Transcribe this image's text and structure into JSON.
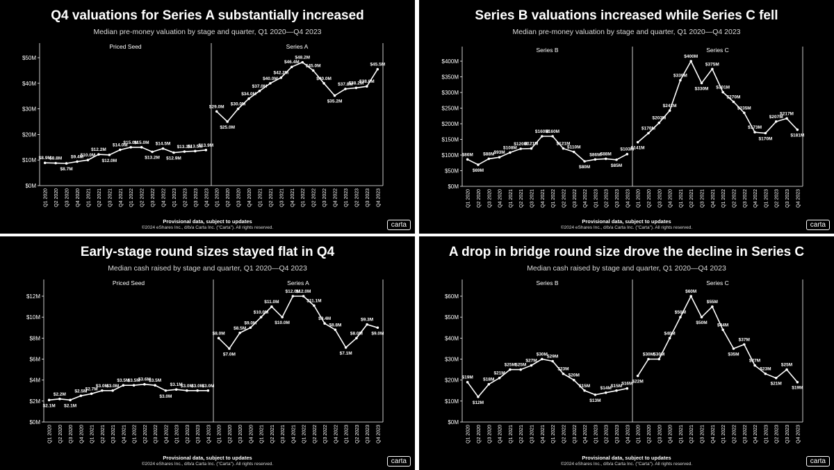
{
  "chart_data": [
    {
      "type": "line",
      "title": "Q4 valuations for Series A substantially increased",
      "subtitle": "Median pre-money valuation by stage and quarter, Q1 2020—Q4 2023",
      "footnote": "Provisional data, subject to updates",
      "copyright": "©2024 eShares Inc., d/b/a Carta Inc. (\"Carta\"). All rights reserved.",
      "logo": "carta",
      "ylim": [
        0,
        50
      ],
      "yticks": [
        "$0M",
        "$10M",
        "$20M",
        "$30M",
        "$40M",
        "$50M"
      ],
      "x": [
        "Q1 2020",
        "Q2 2020",
        "Q3 2020",
        "Q4 2020",
        "Q1 2021",
        "Q2 2021",
        "Q3 2021",
        "Q4 2021",
        "Q1 2022",
        "Q2 2022",
        "Q3 2022",
        "Q4 2022",
        "Q1 2023",
        "Q2 2023",
        "Q3 2023",
        "Q4 2023"
      ],
      "series": [
        {
          "name": "Priced Seed",
          "values": [
            8.9,
            8.8,
            8.7,
            9.4,
            10.0,
            12.2,
            12.0,
            14.0,
            15.0,
            15.0,
            13.2,
            14.5,
            12.9,
            13.3,
            13.5,
            13.9
          ],
          "labels": [
            "$8.9M",
            "$8.8M",
            "$8.7M",
            "$9.4M",
            "$10.0M",
            "$12.2M",
            "$12.0M",
            "$14.0M",
            "$15.0M",
            "$15.0M",
            "$13.2M",
            "$14.5M",
            "$12.9M",
            "$13.3M",
            "$13.5M",
            "$13.9M"
          ]
        },
        {
          "name": "Series A",
          "values": [
            29.0,
            25.0,
            30.0,
            34.0,
            37.0,
            40.0,
            42.2,
            46.4,
            48.2,
            45.0,
            40.0,
            35.2,
            37.8,
            38.2,
            38.8,
            45.5
          ],
          "labels": [
            "$29.0M",
            "$25.0M",
            "$30.0M",
            "$34.0M",
            "$37.0M",
            "$40.0M",
            "$42.2M",
            "$46.4M",
            "$48.2M",
            "$45.0M",
            "$40.0M",
            "$35.2M",
            "$37.8M",
            "$38.2M",
            "$38.8M",
            "$45.5M"
          ]
        }
      ]
    },
    {
      "type": "line",
      "title": "Series B valuations increased while Series C fell",
      "subtitle": "Median pre-money valuation by stage and quarter, Q1 2020—Q4 2023",
      "footnote": "Provisional data, subject to updates",
      "copyright": "©2024 eShares Inc., d/b/a Carta Inc. (\"Carta\"). All rights reserved.",
      "logo": "carta",
      "ylim": [
        0,
        400
      ],
      "yticks": [
        "$0M",
        "$50M",
        "$100M",
        "$150M",
        "$200M",
        "$250M",
        "$300M",
        "$350M",
        "$400M"
      ],
      "x": [
        "Q1 2020",
        "Q2 2020",
        "Q3 2020",
        "Q4 2020",
        "Q1 2021",
        "Q2 2021",
        "Q3 2021",
        "Q4 2021",
        "Q1 2022",
        "Q2 2022",
        "Q3 2022",
        "Q4 2022",
        "Q1 2023",
        "Q2 2023",
        "Q3 2023",
        "Q4 2023"
      ],
      "series": [
        {
          "name": "Series B",
          "values": [
            86,
            69,
            88,
            93,
            108,
            120,
            121,
            160,
            160,
            121,
            110,
            80,
            86,
            88,
            85,
            103
          ],
          "labels": [
            "$86M",
            "$69M",
            "$88M",
            "$93M",
            "$108M",
            "$120M",
            "$121M",
            "$160M",
            "$160M",
            "$121M",
            "$110M",
            "$80M",
            "$86M",
            "$88M",
            "$85M",
            "$103M"
          ]
        },
        {
          "name": "Series C",
          "values": [
            141,
            170,
            203,
            242,
            339,
            400,
            330,
            375,
            301,
            270,
            235,
            173,
            170,
            207,
            217,
            181
          ],
          "labels": [
            "$141M",
            "$170M",
            "$203M",
            "$242M",
            "$339M",
            "$400M",
            "$330M",
            "$375M",
            "$301M",
            "$270M",
            "$235M",
            "$173M",
            "$170M",
            "$207M",
            "$217M",
            "$181M"
          ]
        }
      ]
    },
    {
      "type": "line",
      "title": "Early-stage round sizes stayed flat in Q4",
      "subtitle": "Median cash raised by stage and quarter, Q1 2020—Q4 2023",
      "footnote": "Provisional data, subject to updates",
      "copyright": "©2024 eShares Inc., d/b/a Carta Inc. (\"Carta\"). All rights reserved.",
      "logo": "carta",
      "ylim": [
        0,
        12
      ],
      "yticks": [
        "$0M",
        "$2M",
        "$4M",
        "$6M",
        "$8M",
        "$10M",
        "$12M"
      ],
      "x": [
        "Q1 2020",
        "Q2 2020",
        "Q3 2020",
        "Q4 2020",
        "Q1 2021",
        "Q2 2021",
        "Q3 2021",
        "Q4 2021",
        "Q1 2022",
        "Q2 2022",
        "Q3 2022",
        "Q4 2022",
        "Q1 2023",
        "Q2 2023",
        "Q3 2023",
        "Q4 2023"
      ],
      "series": [
        {
          "name": "Priced Seed",
          "values": [
            2.1,
            2.2,
            2.1,
            2.5,
            2.7,
            3.0,
            3.0,
            3.5,
            3.5,
            3.6,
            3.5,
            3.0,
            3.1,
            3.0,
            3.0,
            3.0
          ],
          "labels": [
            "$2.1M",
            "$2.2M",
            "$2.1M",
            "$2.5M",
            "$2.7M",
            "$3.0M",
            "$3.0M",
            "$3.5M",
            "$3.5M",
            "$3.6M",
            "$3.5M",
            "$3.0M",
            "$3.1M",
            "$3.0M",
            "$3.0M",
            "$3.0M"
          ]
        },
        {
          "name": "Series A",
          "values": [
            8.0,
            7.0,
            8.5,
            9.0,
            10.0,
            11.0,
            10.0,
            12.0,
            12.0,
            11.1,
            9.4,
            8.8,
            7.1,
            8.0,
            9.3,
            9.0
          ],
          "labels": [
            "$8.0M",
            "$7.0M",
            "$8.5M",
            "$9.0M",
            "$10.0M",
            "$11.0M",
            "$10.0M",
            "$12.0M",
            "$12.0M",
            "$11.1M",
            "$9.4M",
            "$8.8M",
            "$7.1M",
            "$8.0M",
            "$9.3M",
            "$9.0M"
          ]
        }
      ]
    },
    {
      "type": "line",
      "title": "A drop in bridge round size drove the decline in Series C",
      "subtitle": "Median cash raised by stage and quarter, Q1 2020—Q4 2023",
      "footnote": "Provisional data, subject to updates",
      "copyright": "©2024 eShares Inc., d/b/a Carta Inc. (\"Carta\"). All rights reserved.",
      "logo": "carta",
      "ylim": [
        0,
        60
      ],
      "yticks": [
        "$0M",
        "$10M",
        "$20M",
        "$30M",
        "$40M",
        "$50M",
        "$60M"
      ],
      "x": [
        "Q1 2020",
        "Q2 2020",
        "Q3 2020",
        "Q4 2020",
        "Q1 2021",
        "Q2 2021",
        "Q3 2021",
        "Q4 2021",
        "Q1 2022",
        "Q2 2022",
        "Q3 2022",
        "Q4 2022",
        "Q1 2023",
        "Q2 2023",
        "Q3 2023",
        "Q4 2023"
      ],
      "series": [
        {
          "name": "Series B",
          "values": [
            19,
            12,
            18,
            21,
            25,
            25,
            27,
            30,
            29,
            23,
            20,
            15,
            13,
            14,
            15,
            16
          ],
          "labels": [
            "$19M",
            "$12M",
            "$18M",
            "$21M",
            "$25M",
            "$25M",
            "$27M",
            "$30M",
            "$29M",
            "$23M",
            "$20M",
            "$15M",
            "$13M",
            "$14M",
            "$15M",
            "$16M"
          ]
        },
        {
          "name": "Series C",
          "values": [
            22,
            30,
            30,
            40,
            50,
            60,
            50,
            55,
            44,
            35,
            37,
            27,
            23,
            21,
            25,
            19
          ],
          "labels": [
            "$22M",
            "$30M",
            "$30M",
            "$40M",
            "$50M",
            "$60M",
            "$50M",
            "$55M",
            "$44M",
            "$35M",
            "$37M",
            "$27M",
            "$23M",
            "$21M",
            "$25M",
            "$19M"
          ]
        }
      ]
    }
  ]
}
